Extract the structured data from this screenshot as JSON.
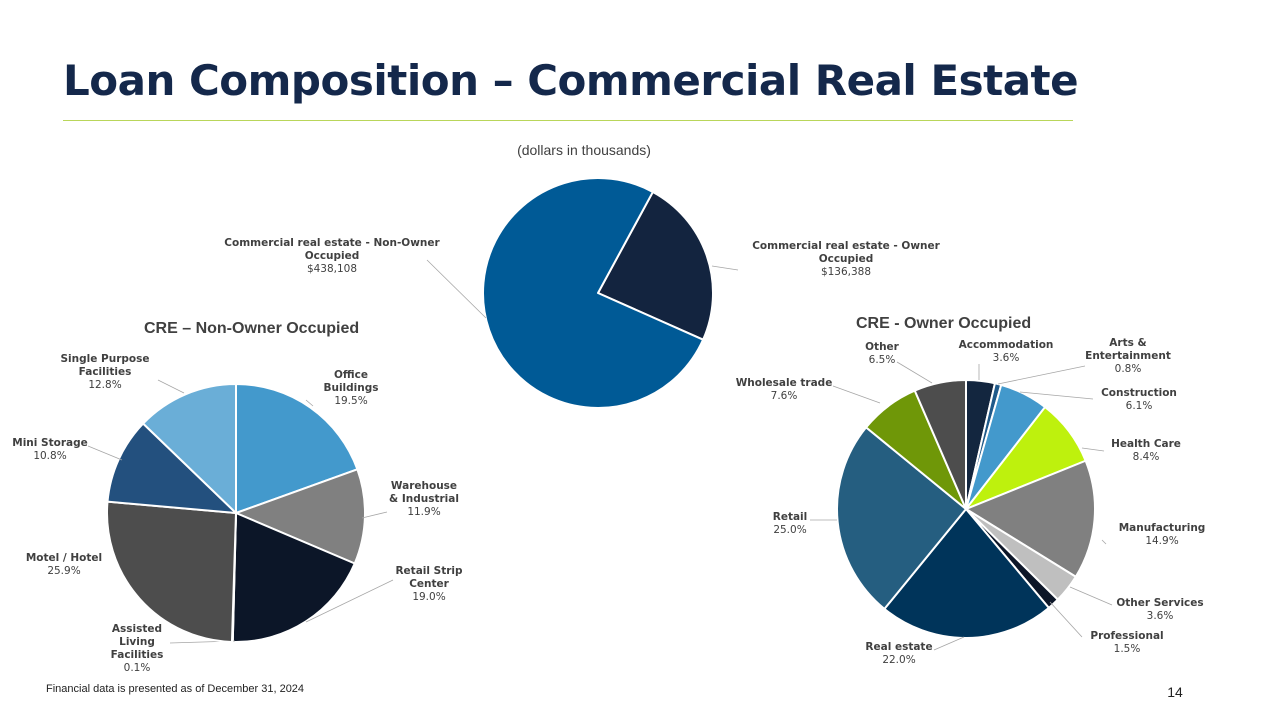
{
  "header": {
    "title": "Loan Composition – Commercial Real Estate",
    "subtitle": "(dollars in thousands)"
  },
  "footer": {
    "note": "Financial data is presented as of December 31, 2024",
    "page_number": "14"
  },
  "chart_data": [
    {
      "id": "total",
      "type": "pie",
      "title": "",
      "slices": [
        {
          "lines": [
            "Commercial real estate - Owner",
            "Occupied"
          ],
          "value_label": "$136,388",
          "value": 136388,
          "color": "#13243f"
        },
        {
          "lines": [
            "Commercial real estate - Non-Owner",
            "Occupied"
          ],
          "value_label": "$438,108",
          "value": 438108,
          "color": "#005a96"
        }
      ]
    },
    {
      "id": "non_owner",
      "type": "pie",
      "title": "CRE – Non-Owner Occupied",
      "slices": [
        {
          "lines": [
            "Office",
            "Buildings"
          ],
          "value_label": "19.5%",
          "value": 19.5,
          "color": "#4399cc"
        },
        {
          "lines": [
            "Warehouse",
            "& Industrial"
          ],
          "value_label": "11.9%",
          "value": 11.9,
          "color": "#808080"
        },
        {
          "lines": [
            "Retail Strip",
            "Center"
          ],
          "value_label": "19.0%",
          "value": 19.0,
          "color": "#0c1628"
        },
        {
          "lines": [
            "Assisted",
            "Living",
            "Facilities"
          ],
          "value_label": "0.1%",
          "value": 0.1,
          "color": "#2e3a48"
        },
        {
          "lines": [
            "Motel / Hotel"
          ],
          "value_label": "25.9%",
          "value": 25.9,
          "color": "#4d4d4d"
        },
        {
          "lines": [
            "Mini Storage"
          ],
          "value_label": "10.8%",
          "value": 10.8,
          "color": "#23507e"
        },
        {
          "lines": [
            "Single Purpose",
            "Facilities"
          ],
          "value_label": "12.8%",
          "value": 12.8,
          "color": "#6aaed7"
        }
      ]
    },
    {
      "id": "owner",
      "type": "pie",
      "title": "CRE - Owner Occupied",
      "slices": [
        {
          "lines": [
            "Accommodation"
          ],
          "value_label": "3.6%",
          "value": 3.6,
          "color": "#13263f"
        },
        {
          "lines": [
            "Arts &",
            "Entertainment"
          ],
          "value_label": "0.8%",
          "value": 0.8,
          "color": "#1f5a8a"
        },
        {
          "lines": [
            "Construction"
          ],
          "value_label": "6.1%",
          "value": 6.1,
          "color": "#4399cc"
        },
        {
          "lines": [
            "Health Care"
          ],
          "value_label": "8.4%",
          "value": 8.4,
          "color": "#bef10d"
        },
        {
          "lines": [
            "Manufacturing"
          ],
          "value_label": "14.9%",
          "value": 14.9,
          "color": "#808080"
        },
        {
          "lines": [
            "Other Services"
          ],
          "value_label": "3.6%",
          "value": 3.6,
          "color": "#bfbfbf"
        },
        {
          "lines": [
            "Professional"
          ],
          "value_label": "1.5%",
          "value": 1.5,
          "color": "#0c1628"
        },
        {
          "lines": [
            "Real estate"
          ],
          "value_label": "22.0%",
          "value": 22.0,
          "color": "#00345a"
        },
        {
          "lines": [
            "Retail"
          ],
          "value_label": "25.0%",
          "value": 25.0,
          "color": "#255e80"
        },
        {
          "lines": [
            "Wholesale trade"
          ],
          "value_label": "7.6%",
          "value": 7.6,
          "color": "#6f9708"
        },
        {
          "lines": [
            "Other"
          ],
          "value_label": "6.5%",
          "value": 6.5,
          "color": "#4d4d4d"
        }
      ]
    }
  ]
}
